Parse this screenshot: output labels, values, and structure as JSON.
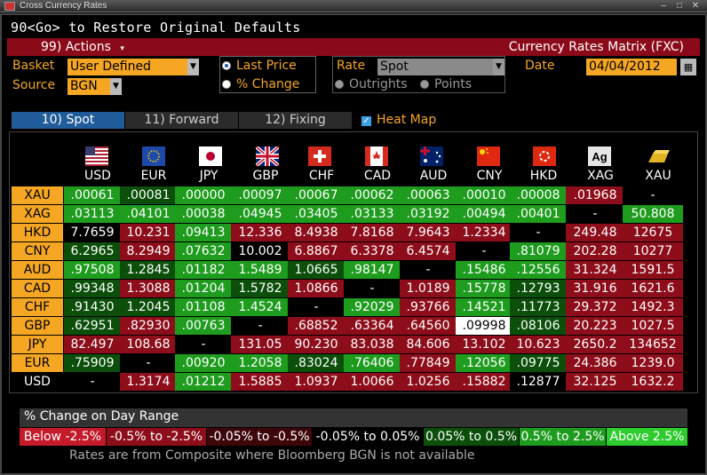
{
  "window": {
    "title": "Cross Currency Rates"
  },
  "command_line": "90<Go> to Restore Original Defaults",
  "toolbar": {
    "actions_label": "99) Actions",
    "matrix_title": "Currency Rates Matrix (FXC)"
  },
  "controls": {
    "basket_label": "Basket",
    "basket_value": "User Defined",
    "source_label": "Source",
    "source_value": "BGN",
    "display_options": [
      "Last Price",
      "% Change"
    ],
    "display_selected": "Last Price",
    "rate_label": "Rate",
    "rate_value": "Spot",
    "rate_options": [
      "Outrights",
      "Points"
    ],
    "date_label": "Date",
    "date_value": "04/04/2012"
  },
  "tabs": [
    {
      "label": "10) Spot",
      "active": true
    },
    {
      "label": "11) Forward",
      "active": false
    },
    {
      "label": "12) Fixing",
      "active": false
    }
  ],
  "heatmap_label": "Heat Map",
  "heatmap_checked": true,
  "columns": [
    {
      "code": "USD",
      "flag": "us-flag-icon"
    },
    {
      "code": "EUR",
      "flag": "eu-flag-icon"
    },
    {
      "code": "JPY",
      "flag": "jp-flag-icon"
    },
    {
      "code": "GBP",
      "flag": "gb-flag-icon"
    },
    {
      "code": "CHF",
      "flag": "ch-flag-icon"
    },
    {
      "code": "CAD",
      "flag": "ca-flag-icon"
    },
    {
      "code": "AUD",
      "flag": "au-flag-icon"
    },
    {
      "code": "CNY",
      "flag": "cn-flag-icon"
    },
    {
      "code": "HKD",
      "flag": "hk-flag-icon"
    },
    {
      "code": "XAG",
      "flag": "silver-icon"
    },
    {
      "code": "XAU",
      "flag": "gold-icon"
    }
  ],
  "heat_colors": {
    "G": "#1e9c1e",
    "g": "#0b4f0b",
    "R": "#8d0d1a",
    "r": "#3d060b",
    "n": "#000000",
    "w": "#ffffff"
  },
  "rows": [
    {
      "code": "XAU",
      "cells": [
        [
          ".00061",
          "G"
        ],
        [
          ".00081",
          "g"
        ],
        [
          ".00000",
          "G"
        ],
        [
          ".00097",
          "G"
        ],
        [
          ".00067",
          "G"
        ],
        [
          ".00062",
          "G"
        ],
        [
          ".00063",
          "G"
        ],
        [
          ".00010",
          "G"
        ],
        [
          ".00008",
          "G"
        ],
        [
          ".01968",
          "R"
        ],
        [
          "-",
          "n"
        ]
      ]
    },
    {
      "code": "XAG",
      "cells": [
        [
          ".03113",
          "G"
        ],
        [
          ".04101",
          "G"
        ],
        [
          ".00038",
          "G"
        ],
        [
          ".04945",
          "G"
        ],
        [
          ".03405",
          "G"
        ],
        [
          ".03133",
          "G"
        ],
        [
          ".03192",
          "G"
        ],
        [
          ".00494",
          "G"
        ],
        [
          ".00401",
          "G"
        ],
        [
          "-",
          "n"
        ],
        [
          "50.808",
          "G"
        ]
      ]
    },
    {
      "code": "HKD",
      "cells": [
        [
          "7.7659",
          "n"
        ],
        [
          "10.231",
          "R"
        ],
        [
          ".09413",
          "G"
        ],
        [
          "12.336",
          "R"
        ],
        [
          "8.4938",
          "R"
        ],
        [
          "7.8168",
          "R"
        ],
        [
          "7.9643",
          "R"
        ],
        [
          "1.2334",
          "R"
        ],
        [
          "-",
          "n"
        ],
        [
          "249.48",
          "R"
        ],
        [
          "12675",
          "R"
        ]
      ]
    },
    {
      "code": "CNY",
      "cells": [
        [
          "6.2965",
          "g"
        ],
        [
          "8.2949",
          "R"
        ],
        [
          ".07632",
          "G"
        ],
        [
          "10.002",
          "n"
        ],
        [
          "6.8867",
          "R"
        ],
        [
          "6.3378",
          "R"
        ],
        [
          "6.4574",
          "R"
        ],
        [
          "-",
          "n"
        ],
        [
          ".81079",
          "G"
        ],
        [
          "202.28",
          "R"
        ],
        [
          "10277",
          "R"
        ]
      ]
    },
    {
      "code": "AUD",
      "cells": [
        [
          ".97508",
          "G"
        ],
        [
          "1.2845",
          "g"
        ],
        [
          ".01182",
          "G"
        ],
        [
          "1.5489",
          "G"
        ],
        [
          "1.0665",
          "g"
        ],
        [
          ".98147",
          "G"
        ],
        [
          "-",
          "n"
        ],
        [
          ".15486",
          "G"
        ],
        [
          ".12556",
          "G"
        ],
        [
          "31.324",
          "R"
        ],
        [
          "1591.5",
          "R"
        ]
      ]
    },
    {
      "code": "CAD",
      "cells": [
        [
          ".99348",
          "g"
        ],
        [
          "1.3088",
          "R"
        ],
        [
          ".01204",
          "G"
        ],
        [
          "1.5782",
          "g"
        ],
        [
          "1.0866",
          "R"
        ],
        [
          "-",
          "n"
        ],
        [
          "1.0189",
          "R"
        ],
        [
          ".15778",
          "G"
        ],
        [
          ".12793",
          "g"
        ],
        [
          "31.916",
          "R"
        ],
        [
          "1621.6",
          "R"
        ]
      ]
    },
    {
      "code": "CHF",
      "cells": [
        [
          ".91430",
          "g"
        ],
        [
          "1.2045",
          "g"
        ],
        [
          ".01108",
          "G"
        ],
        [
          "1.4524",
          "G"
        ],
        [
          "-",
          "n"
        ],
        [
          ".92029",
          "G"
        ],
        [
          ".93766",
          "R"
        ],
        [
          ".14521",
          "G"
        ],
        [
          ".11773",
          "g"
        ],
        [
          "29.372",
          "R"
        ],
        [
          "1492.3",
          "R"
        ]
      ]
    },
    {
      "code": "GBP",
      "cells": [
        [
          ".62951",
          "g"
        ],
        [
          ".82930",
          "R"
        ],
        [
          ".00763",
          "G"
        ],
        [
          "-",
          "n"
        ],
        [
          ".68852",
          "R"
        ],
        [
          ".63364",
          "R"
        ],
        [
          ".64560",
          "R"
        ],
        [
          ".09998",
          "w"
        ],
        [
          ".08106",
          "g"
        ],
        [
          "20.223",
          "R"
        ],
        [
          "1027.5",
          "R"
        ]
      ]
    },
    {
      "code": "JPY",
      "cells": [
        [
          "82.497",
          "R"
        ],
        [
          "108.68",
          "R"
        ],
        [
          "-",
          "n"
        ],
        [
          "131.05",
          "R"
        ],
        [
          "90.230",
          "R"
        ],
        [
          "83.038",
          "R"
        ],
        [
          "84.606",
          "R"
        ],
        [
          "13.102",
          "R"
        ],
        [
          "10.623",
          "R"
        ],
        [
          "2650.2",
          "R"
        ],
        [
          "134652",
          "R"
        ]
      ]
    },
    {
      "code": "EUR",
      "cells": [
        [
          ".75909",
          "g"
        ],
        [
          "-",
          "n"
        ],
        [
          ".00920",
          "G"
        ],
        [
          "1.2058",
          "G"
        ],
        [
          ".83024",
          "g"
        ],
        [
          ".76406",
          "G"
        ],
        [
          ".77849",
          "R"
        ],
        [
          ".12056",
          "G"
        ],
        [
          ".09775",
          "g"
        ],
        [
          "24.386",
          "R"
        ],
        [
          "1239.0",
          "R"
        ]
      ]
    },
    {
      "code": "USD",
      "cells": [
        [
          "-",
          "n"
        ],
        [
          "1.3174",
          "R"
        ],
        [
          ".01212",
          "G"
        ],
        [
          "1.5885",
          "R"
        ],
        [
          "1.0937",
          "R"
        ],
        [
          "1.0066",
          "R"
        ],
        [
          "1.0256",
          "R"
        ],
        [
          ".15882",
          "R"
        ],
        [
          ".12877",
          "n"
        ],
        [
          "32.125",
          "R"
        ],
        [
          "1632.2",
          "R"
        ]
      ]
    }
  ],
  "legend": {
    "title": "% Change on Day Range",
    "items": [
      {
        "label": "Below -2.5%",
        "color": "#c41a2a"
      },
      {
        "label": "-0.5% to -2.5%",
        "color": "#8d0d1a"
      },
      {
        "label": "-0.05% to -0.5%",
        "color": "#3d060b"
      },
      {
        "label": "-0.05% to 0.05%",
        "color": "#000000"
      },
      {
        "label": "0.05% to 0.5%",
        "color": "#0b4f0b"
      },
      {
        "label": "0.5% to 2.5%",
        "color": "#1e9c1e"
      },
      {
        "label": "Above 2.5%",
        "color": "#2ecc2e"
      }
    ]
  },
  "footnote": "Rates are from Composite where Bloomberg BGN is not available"
}
